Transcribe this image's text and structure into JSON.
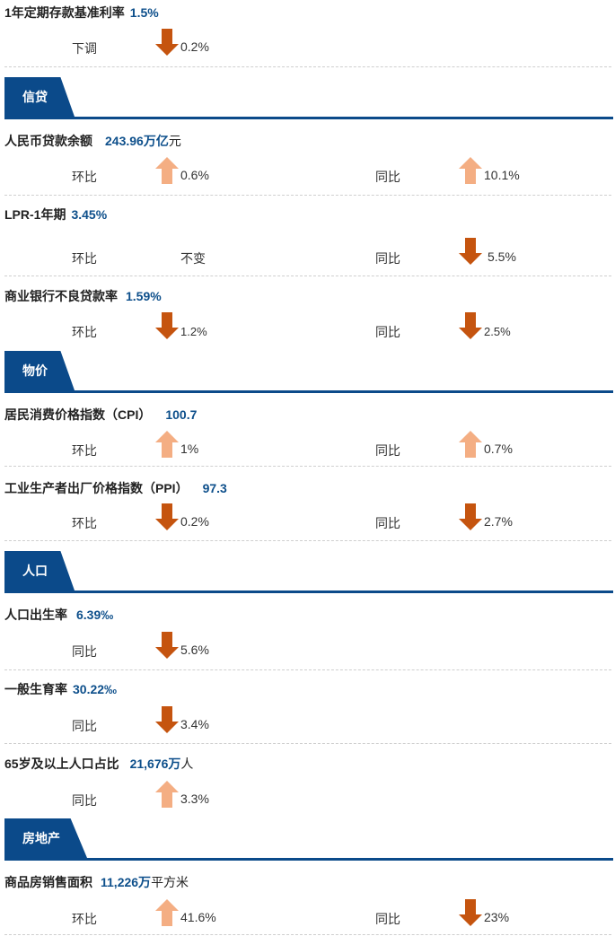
{
  "deposit": {
    "title": "1年定期存款基准利率",
    "value": "1.5%",
    "adj_label": "下调",
    "adj_dir": "down",
    "adj_value": "0.2%"
  },
  "sections": {
    "credit": "信贷",
    "price": "物价",
    "population": "人口",
    "realestate": "房地产"
  },
  "credit": {
    "rmb_loans": {
      "title": "人民币贷款余额",
      "value": "243.96万亿",
      "unit": "元",
      "mom_label": "环比",
      "mom_dir": "up",
      "mom_value": "0.6%",
      "yoy_label": "同比",
      "yoy_dir": "up",
      "yoy_value": "10.1%"
    },
    "lpr": {
      "title": "LPR-1年期",
      "value": "3.45%",
      "mom_label": "环比",
      "mom_value": "不变",
      "yoy_label": "同比",
      "yoy_dir": "down",
      "yoy_value": "5.5%"
    },
    "npl": {
      "title": "商业银行不良贷款率",
      "value": "1.59%",
      "mom_label": "环比",
      "mom_dir": "down",
      "mom_value": "1.2%",
      "yoy_label": "同比",
      "yoy_dir": "down",
      "yoy_value": "2.5%"
    }
  },
  "price": {
    "cpi": {
      "title": "居民消费价格指数（CPI）",
      "value": "100.7",
      "mom_label": "环比",
      "mom_dir": "up",
      "mom_value": "1%",
      "yoy_label": "同比",
      "yoy_dir": "up",
      "yoy_value": "0.7%"
    },
    "ppi": {
      "title": "工业生产者出厂价格指数（PPI）",
      "value": "97.3",
      "mom_label": "环比",
      "mom_dir": "down",
      "mom_value": "0.2%",
      "yoy_label": "同比",
      "yoy_dir": "down",
      "yoy_value": "2.7%"
    }
  },
  "population": {
    "birth": {
      "title": "人口出生率",
      "value": "6.39‰",
      "yoy_label": "同比",
      "yoy_dir": "down",
      "yoy_value": "5.6%"
    },
    "fertility": {
      "title": "一般生育率",
      "value": "30.22‰",
      "yoy_label": "同比",
      "yoy_dir": "down",
      "yoy_value": "3.4%"
    },
    "elderly": {
      "title": "65岁及以上人口占比",
      "value": "21,676万",
      "unit": "人",
      "yoy_label": "同比",
      "yoy_dir": "up",
      "yoy_value": "3.3%"
    }
  },
  "realestate": {
    "sales": {
      "title": "商品房销售面积",
      "value": "11,226万",
      "unit": "平方米",
      "mom_label": "环比",
      "mom_dir": "up",
      "mom_value": "41.6%",
      "yoy_label": "同比",
      "yoy_dir": "down",
      "yoy_value": "23%"
    }
  },
  "icons": {
    "up": "arrow-up-icon",
    "down": "arrow-down-icon"
  },
  "colors": {
    "up": "#f4ae83",
    "down": "#c5540f",
    "accent": "#0b4a8a",
    "value": "#0d4f8b"
  }
}
